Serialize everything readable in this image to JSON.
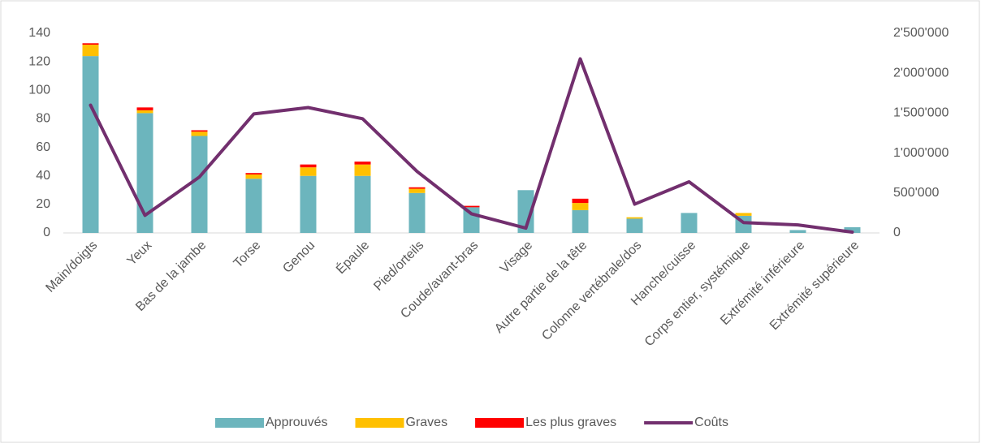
{
  "chart_data": {
    "type": "bar_line",
    "categories": [
      "Main/doigts",
      "Yeux",
      "Bas de la jambe",
      "Torse",
      "Genou",
      "Épaule",
      "Pied/orteils",
      "Coude/avant-bras",
      "Visage",
      "Autre partie de la tête",
      "Colonne vertébrale/dos",
      "Hanche/cuisse",
      "Corps entier, systémique",
      "Extrémité inférieure",
      "Extrémité supérieure"
    ],
    "series": [
      {
        "name": "Approuvés",
        "color": "#6cb5bd",
        "values": [
          124,
          84,
          68,
          38,
          40,
          40,
          28,
          18,
          30,
          16,
          10,
          14,
          12,
          2,
          4
        ]
      },
      {
        "name": "Graves",
        "color": "#ffc000",
        "values": [
          8,
          2,
          3,
          3,
          6,
          8,
          3,
          0,
          0,
          5,
          1,
          0,
          2,
          0,
          0
        ]
      },
      {
        "name": "Les plus graves",
        "color": "#ff0000",
        "values": [
          1,
          2,
          1,
          1,
          2,
          2,
          1,
          1,
          0,
          3,
          0,
          0,
          0,
          0,
          0
        ]
      },
      {
        "name": "Coûts",
        "color": "#722f6e",
        "axis": "y2",
        "values": [
          1600000,
          220000,
          700000,
          1490000,
          1570000,
          1430000,
          770000,
          240000,
          60000,
          2180000,
          360000,
          640000,
          130000,
          100000,
          10000
        ]
      }
    ],
    "ylim": [
      0,
      140
    ],
    "yticks": [
      0,
      20,
      40,
      60,
      80,
      100,
      120,
      140
    ],
    "y2lim": [
      0,
      2500000
    ],
    "y2ticks": [
      {
        "value": 0,
        "label": "0"
      },
      {
        "value": 500000,
        "label": "500'000"
      },
      {
        "value": 1000000,
        "label": "1'000'000"
      },
      {
        "value": 1500000,
        "label": "1'500'000"
      },
      {
        "value": 2000000,
        "label": "2'000'000"
      },
      {
        "value": 2500000,
        "label": "2'500'000"
      }
    ],
    "legend": "bottom"
  }
}
